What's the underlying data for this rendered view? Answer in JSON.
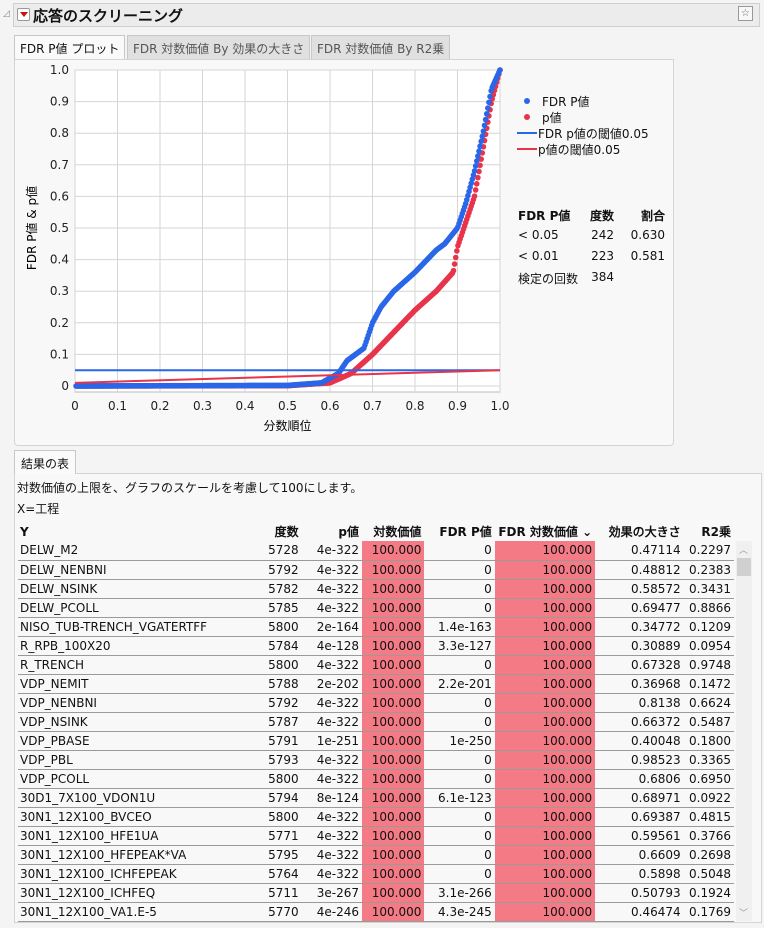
{
  "header": {
    "title": "応答のスクリーニング"
  },
  "tabs": [
    {
      "label": "FDR P値 プロット",
      "active": true
    },
    {
      "label": "FDR 対数価値 By 効果の大きさ"
    },
    {
      "label": "FDR 対数価値 By R2乗"
    }
  ],
  "legend": {
    "items": [
      {
        "label": "FDR P値",
        "type": "dot",
        "color": "#2a66e8"
      },
      {
        "label": "p値",
        "type": "dot",
        "color": "#e8344a"
      },
      {
        "label": "FDR p値の閾値0.05",
        "type": "line",
        "color": "#2a66e8"
      },
      {
        "label": "p値の閾値0.05",
        "type": "line",
        "color": "#e8344a"
      }
    ]
  },
  "summary": {
    "headers": [
      "FDR P値",
      "度数",
      "割合"
    ],
    "rows": [
      [
        "< 0.05",
        "242",
        "0.630"
      ],
      [
        "< 0.01",
        "223",
        "0.581"
      ]
    ],
    "tests_label": "検定の回数",
    "tests_value": "384"
  },
  "chart_data": {
    "type": "scatter",
    "xlabel": "分数順位",
    "ylabel": "FDR P値 & p値",
    "xlim": [
      0,
      1
    ],
    "ylim": [
      0,
      1
    ],
    "xticks": [
      "0",
      "0.1",
      "0.2",
      "0.3",
      "0.4",
      "0.5",
      "0.6",
      "0.7",
      "0.8",
      "0.9",
      "1.0"
    ],
    "yticks": [
      "0",
      "0.1",
      "0.2",
      "0.3",
      "0.4",
      "0.5",
      "0.6",
      "0.7",
      "0.8",
      "0.9",
      "1.0"
    ],
    "grid": true,
    "n_points": 384,
    "series": [
      {
        "name": "FDR P値",
        "color": "#2a66e8",
        "approx_curve": [
          [
            0,
            0
          ],
          [
            0.5,
            0.002
          ],
          [
            0.58,
            0.01
          ],
          [
            0.62,
            0.04
          ],
          [
            0.64,
            0.08
          ],
          [
            0.68,
            0.12
          ],
          [
            0.7,
            0.2
          ],
          [
            0.72,
            0.25
          ],
          [
            0.75,
            0.3
          ],
          [
            0.8,
            0.36
          ],
          [
            0.85,
            0.43
          ],
          [
            0.87,
            0.45
          ],
          [
            0.9,
            0.5
          ],
          [
            0.92,
            0.58
          ],
          [
            0.94,
            0.68
          ],
          [
            0.96,
            0.8
          ],
          [
            0.98,
            0.94
          ],
          [
            1,
            1
          ]
        ]
      },
      {
        "name": "p値",
        "color": "#e8344a",
        "approx_curve": [
          [
            0,
            0
          ],
          [
            0.5,
            0.001
          ],
          [
            0.6,
            0.01
          ],
          [
            0.65,
            0.04
          ],
          [
            0.7,
            0.1
          ],
          [
            0.75,
            0.17
          ],
          [
            0.8,
            0.24
          ],
          [
            0.85,
            0.3
          ],
          [
            0.89,
            0.36
          ],
          [
            0.9,
            0.44
          ],
          [
            0.92,
            0.52
          ],
          [
            0.94,
            0.6
          ],
          [
            0.96,
            0.75
          ],
          [
            0.98,
            0.9
          ],
          [
            1,
            1
          ]
        ]
      }
    ],
    "lines": [
      {
        "name": "FDR p値の閾値0.05",
        "color": "#2a66e8",
        "points": [
          [
            0,
            0.05
          ],
          [
            1,
            0.05
          ]
        ]
      },
      {
        "name": "p値の閾値0.05",
        "color": "#e8344a",
        "points": [
          [
            0,
            0.01
          ],
          [
            1,
            0.05
          ]
        ]
      }
    ]
  },
  "results": {
    "tab_label": "結果の表",
    "note": "対数価値の上限を、グラフのスケールを考慮して100にします。",
    "x_label": "X=工程",
    "columns": [
      "Y",
      "度数",
      "p値",
      "対数価値",
      "FDR P値",
      "FDR 対数価値 ⌄",
      "効果の大きさ",
      "R2乗"
    ],
    "highlight_color": "#f47a86",
    "rows": [
      [
        "DELW_M2",
        "5728",
        "4e-322",
        "100.000",
        "0",
        "100.000",
        "0.47114",
        "0.2297"
      ],
      [
        "DELW_NENBNI",
        "5792",
        "4e-322",
        "100.000",
        "0",
        "100.000",
        "0.48812",
        "0.2383"
      ],
      [
        "DELW_NSINK",
        "5782",
        "4e-322",
        "100.000",
        "0",
        "100.000",
        "0.58572",
        "0.3431"
      ],
      [
        "DELW_PCOLL",
        "5785",
        "4e-322",
        "100.000",
        "0",
        "100.000",
        "0.69477",
        "0.8866"
      ],
      [
        "NISO_TUB-TRENCH_VGATERTFF",
        "5800",
        "2e-164",
        "100.000",
        "1.4e-163",
        "100.000",
        "0.34772",
        "0.1209"
      ],
      [
        "R_RPB_100X20",
        "5784",
        "4e-128",
        "100.000",
        "3.3e-127",
        "100.000",
        "0.30889",
        "0.0954"
      ],
      [
        "R_TRENCH",
        "5800",
        "4e-322",
        "100.000",
        "0",
        "100.000",
        "0.67328",
        "0.9748"
      ],
      [
        "VDP_NEMIT",
        "5788",
        "2e-202",
        "100.000",
        "2.2e-201",
        "100.000",
        "0.36968",
        "0.1472"
      ],
      [
        "VDP_NENBNI",
        "5792",
        "4e-322",
        "100.000",
        "0",
        "100.000",
        "0.8138",
        "0.6624"
      ],
      [
        "VDP_NSINK",
        "5787",
        "4e-322",
        "100.000",
        "0",
        "100.000",
        "0.66372",
        "0.5487"
      ],
      [
        "VDP_PBASE",
        "5791",
        "1e-251",
        "100.000",
        "1e-250",
        "100.000",
        "0.40048",
        "0.1800"
      ],
      [
        "VDP_PBL",
        "5793",
        "4e-322",
        "100.000",
        "0",
        "100.000",
        "0.98523",
        "0.3365"
      ],
      [
        "VDP_PCOLL",
        "5800",
        "4e-322",
        "100.000",
        "0",
        "100.000",
        "0.6806",
        "0.6950"
      ],
      [
        "30D1_7X100_VDON1U",
        "5794",
        "8e-124",
        "100.000",
        "6.1e-123",
        "100.000",
        "0.68971",
        "0.0922"
      ],
      [
        "30N1_12X100_BVCEO",
        "5800",
        "4e-322",
        "100.000",
        "0",
        "100.000",
        "0.69387",
        "0.4815"
      ],
      [
        "30N1_12X100_HFE1UA",
        "5771",
        "4e-322",
        "100.000",
        "0",
        "100.000",
        "0.59561",
        "0.3766"
      ],
      [
        "30N1_12X100_HFEPEAK*VA",
        "5795",
        "4e-322",
        "100.000",
        "0",
        "100.000",
        "0.6609",
        "0.2698"
      ],
      [
        "30N1_12X100_ICHFEPEAK",
        "5764",
        "4e-322",
        "100.000",
        "0",
        "100.000",
        "0.5898",
        "0.5048"
      ],
      [
        "30N1_12X100_ICHFEQ",
        "5711",
        "3e-267",
        "100.000",
        "3.1e-266",
        "100.000",
        "0.50793",
        "0.1924"
      ],
      [
        "30N1_12X100_VA1.E-5",
        "5770",
        "4e-246",
        "100.000",
        "4.3e-245",
        "100.000",
        "0.46474",
        "0.1769"
      ]
    ]
  }
}
